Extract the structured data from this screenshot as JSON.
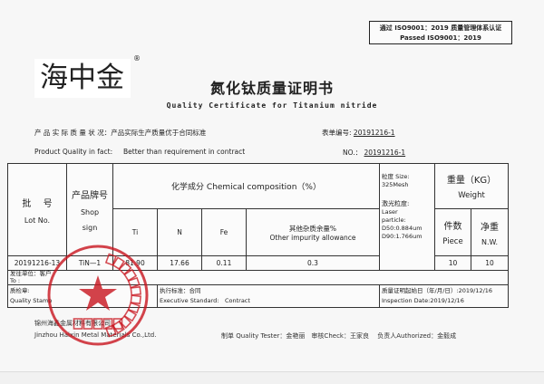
{
  "iso": {
    "line1": "通过 ISO9001：2019 质量管理体系认证",
    "line2": "Passed  ISO9001：2019"
  },
  "logo": {
    "text": "海中金",
    "mark": "®"
  },
  "title": "氮化钛质量证明书",
  "subtitle": "Quality Certificate for Titanium nitride",
  "quality_cn_label": "产 品 实 际 质 量 状 况：",
  "quality_cn_value": "产品实际生产质量优于合同标准",
  "form_no_label": "表单编号:",
  "form_no": "20191216-1",
  "quality_en_label": "Product Quality in fact:",
  "quality_en_value": "Better than requirement in contract",
  "no_label": "NO.：",
  "no_value": "20191216-1",
  "table": {
    "lot_cn": "批　 号",
    "lot_en": "Lot No.",
    "shop_cn": "产品牌号",
    "shop_en": "Shop",
    "shop_en2": "sign",
    "chem": "化学成分 Chemical composition（%）",
    "ti": "Ti",
    "n": "N",
    "fe": "Fe",
    "other_cn": "其他杂质余量%",
    "other_en": "Other impurity allowance",
    "size1": "粒度 Size:",
    "size2": "325Mesh",
    "laser1": "激光粒度:",
    "laser2": "Laser",
    "laser3": "particle:",
    "laser4": "D50:0.884um",
    "laser5": "D90:1.766um",
    "weight_cn": "重量（KG）",
    "weight_en": "Weight",
    "piece_cn": "件数",
    "piece_en": "Piece",
    "nw_cn": "净重",
    "nw_en": "N.W.",
    "row": {
      "lot": "20191216-13",
      "shop": "TiN—1",
      "ti": "81.90",
      "n": "17.66",
      "fe": "0.11",
      "other": "0.3",
      "piece": "10",
      "nw": "10"
    },
    "to_cn": "发往单位：客户",
    "to_en": "To :",
    "stamp_cn": "质检章:",
    "stamp_en": "Quality Stamp",
    "std_cn": "执行标准：合同",
    "std_en": "Executive Standard:　Contract",
    "date_cn": "质量证明起始日（年/月/日）:2019/12/16",
    "date_en": "Inspection Date:2019/12/16"
  },
  "company_cn": "锦州海鑫金属材料有限公司",
  "company_en": "Jinzhou Haixin Metal Materials Co.,Ltd.",
  "signatures": "制单 Quality Tester：金艳丽　审核Check：王家良　 负责人Authorized：金毅成",
  "seal": {
    "ring_text": "锦州海鑫金属材料有限公司",
    "center_text": "质检专用章",
    "color": "#c8141e"
  }
}
